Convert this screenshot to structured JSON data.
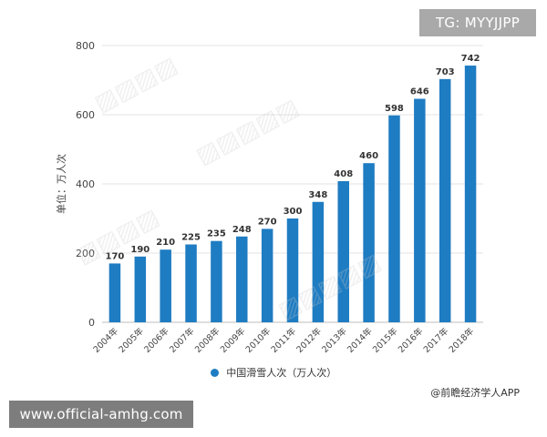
{
  "chart_data": {
    "type": "bar",
    "categories": [
      "2004年",
      "2005年",
      "2006年",
      "2007年",
      "2008年",
      "2009年",
      "2010年",
      "2011年",
      "2012年",
      "2013年",
      "2014年",
      "2015年",
      "2016年",
      "2017年",
      "2018年"
    ],
    "series": [
      {
        "name": "中国滑雪人次（万人次）",
        "values": [
          170,
          190,
          210,
          225,
          235,
          248,
          270,
          300,
          348,
          408,
          460,
          598,
          646,
          703,
          742
        ]
      }
    ],
    "ylabel": "单位：万人次",
    "xlabel": "",
    "ylim": [
      0,
      800
    ],
    "yticks": [
      0,
      200,
      400,
      600,
      800
    ],
    "grid": true,
    "legend_position": "bottom",
    "bar_color": "#1e7cc2",
    "data_labels": true
  },
  "overlays": {
    "tg_badge": "TG: MYYJJPP",
    "site_banner": "www.official-amhg.com",
    "source": "@前瞻经济学人APP"
  },
  "colors": {
    "bar": "#1e7cc2",
    "grid": "#e3e3e3",
    "axis": "#bdbdbd",
    "text": "#333333"
  }
}
